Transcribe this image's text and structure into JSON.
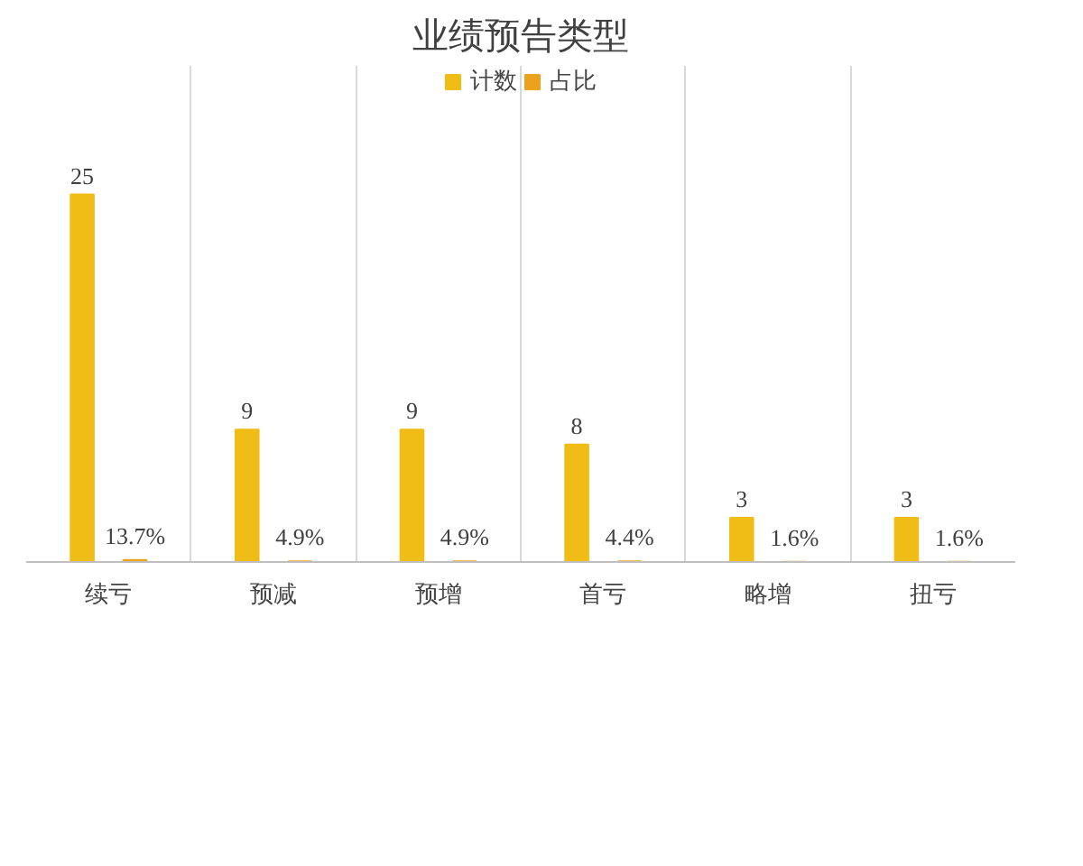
{
  "chart_data": {
    "type": "bar",
    "title": "业绩预告类型",
    "categories": [
      "续亏",
      "预减",
      "预增",
      "首亏",
      "略增",
      "扭亏"
    ],
    "series": [
      {
        "name": "计数",
        "color": "#f0bc16",
        "values": [
          25,
          9,
          9,
          8,
          3,
          3
        ]
      },
      {
        "name": "占比",
        "color": "#eba21c",
        "values": [
          0.137,
          0.049,
          0.049,
          0.044,
          0.016,
          0.016
        ],
        "value_labels": [
          "13.7%",
          "4.9%",
          "4.9%",
          "4.4%",
          "1.6%",
          "1.6%"
        ]
      }
    ],
    "data_labels": true,
    "legend": "top",
    "grid": "x"
  }
}
